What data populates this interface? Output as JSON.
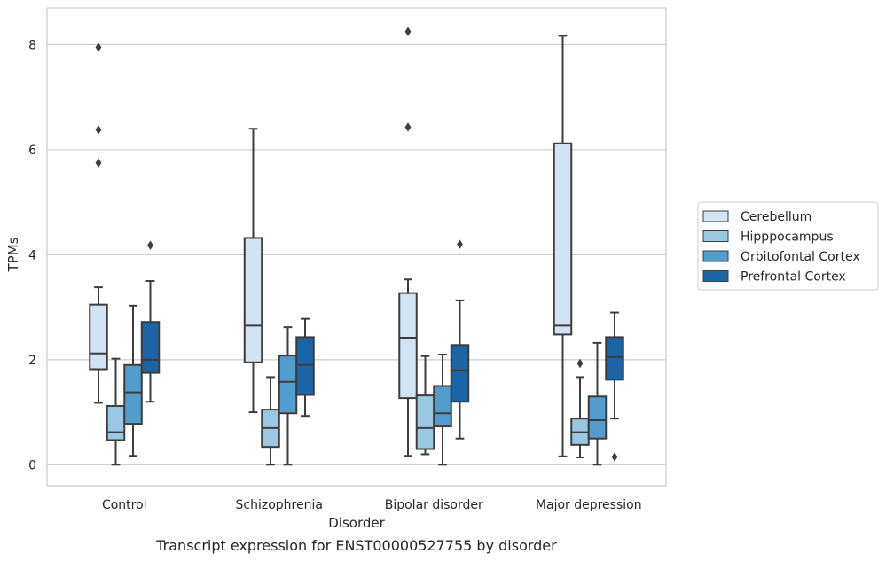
{
  "caption": "Transcript expression for ENST00000527755 by disorder",
  "chart_data": {
    "type": "box",
    "title": "",
    "xlabel": "Disorder",
    "ylabel": "TPMs",
    "ylim": [
      -0.4,
      8.7
    ],
    "yticks": [
      0,
      2,
      4,
      6,
      8
    ],
    "grid": "horizontal",
    "legend_position": "right",
    "categories": [
      "Control",
      "Schizophrenia",
      "Bipolar disorder",
      "Major depression"
    ],
    "series": [
      {
        "name": "Cerebellum",
        "color": "#d2e3f3",
        "boxes": [
          {
            "whisker_low": 1.18,
            "q1": 1.82,
            "median": 2.12,
            "q3": 3.05,
            "whisker_high": 3.38,
            "outliers": [
              5.75,
              6.38,
              7.95
            ]
          },
          {
            "whisker_low": 1.0,
            "q1": 1.95,
            "median": 2.65,
            "q3": 4.32,
            "whisker_high": 6.4,
            "outliers": []
          },
          {
            "whisker_low": 0.17,
            "q1": 1.27,
            "median": 2.42,
            "q3": 3.27,
            "whisker_high": 3.53,
            "outliers": [
              6.43,
              8.25
            ]
          },
          {
            "whisker_low": 0.16,
            "q1": 2.48,
            "median": 2.65,
            "q3": 6.12,
            "whisker_high": 8.17,
            "outliers": []
          }
        ]
      },
      {
        "name": "Hipppocampus",
        "color": "#9ac8e0",
        "boxes": [
          {
            "whisker_low": 0.0,
            "q1": 0.47,
            "median": 0.62,
            "q3": 1.12,
            "whisker_high": 2.02,
            "outliers": []
          },
          {
            "whisker_low": 0.0,
            "q1": 0.34,
            "median": 0.7,
            "q3": 1.05,
            "whisker_high": 1.67,
            "outliers": []
          },
          {
            "whisker_low": 0.2,
            "q1": 0.3,
            "median": 0.7,
            "q3": 1.32,
            "whisker_high": 2.07,
            "outliers": []
          },
          {
            "whisker_low": 0.14,
            "q1": 0.38,
            "median": 0.62,
            "q3": 0.88,
            "whisker_high": 1.67,
            "outliers": [
              1.93
            ]
          }
        ]
      },
      {
        "name": "Orbitofontal Cortex",
        "color": "#529dcc",
        "boxes": [
          {
            "whisker_low": 0.17,
            "q1": 0.78,
            "median": 1.38,
            "q3": 1.9,
            "whisker_high": 3.03,
            "outliers": []
          },
          {
            "whisker_low": 0.0,
            "q1": 0.98,
            "median": 1.58,
            "q3": 2.08,
            "whisker_high": 2.62,
            "outliers": []
          },
          {
            "whisker_low": 0.0,
            "q1": 0.73,
            "median": 0.98,
            "q3": 1.5,
            "whisker_high": 2.1,
            "outliers": []
          },
          {
            "whisker_low": 0.0,
            "q1": 0.5,
            "median": 0.85,
            "q3": 1.3,
            "whisker_high": 2.32,
            "outliers": []
          }
        ]
      },
      {
        "name": "Prefrontal Cortex",
        "color": "#1b64a6",
        "boxes": [
          {
            "whisker_low": 1.2,
            "q1": 1.75,
            "median": 2.0,
            "q3": 2.72,
            "whisker_high": 3.5,
            "outliers": [
              4.18
            ]
          },
          {
            "whisker_low": 0.93,
            "q1": 1.33,
            "median": 1.9,
            "q3": 2.43,
            "whisker_high": 2.78,
            "outliers": []
          },
          {
            "whisker_low": 0.5,
            "q1": 1.2,
            "median": 1.8,
            "q3": 2.28,
            "whisker_high": 3.13,
            "outliers": [
              4.2
            ]
          },
          {
            "whisker_low": 0.88,
            "q1": 1.62,
            "median": 2.05,
            "q3": 2.43,
            "whisker_high": 2.9,
            "outliers": [
              0.15
            ]
          }
        ]
      }
    ]
  }
}
